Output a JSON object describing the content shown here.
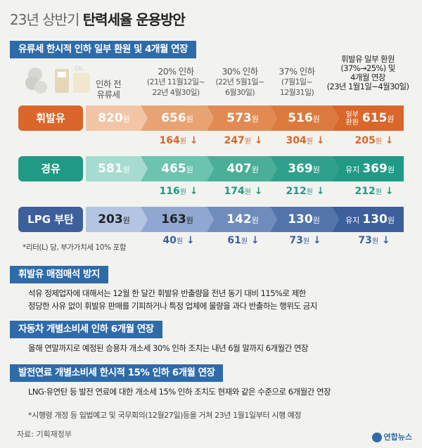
{
  "title": {
    "light": "23년 상반기",
    "bold": "탄력세율 운용방안"
  },
  "section1": {
    "heading": "유류세 한시적 인하 일부 환원 및 4개월 연장",
    "illustration_label": "OIL",
    "columns": [
      {
        "line1": "인하 전",
        "line2": "유류세"
      },
      {
        "line1": "20% 인하",
        "line2": "(21년 11월12일~",
        "line3": "22년 4월30일)"
      },
      {
        "line1": "30% 인하",
        "line2": "(22년 5월1일~",
        "line3": "6월30일)"
      },
      {
        "line1": "37% 인하",
        "line2": "(7월1일~",
        "line3": "12월31일)"
      },
      {
        "line1": "휘발유 일부 환원",
        "line2": "(37%→25%) 및",
        "line3": "4개월 연장",
        "line4": "(23년 1월1일~4월30일)"
      }
    ],
    "unit": "원",
    "rows": [
      {
        "label": "휘발유",
        "color": "#d9662a",
        "values": [
          "820",
          "656",
          "573",
          "516",
          "615"
        ],
        "last_prefix": "일부 환원",
        "last_prefix_a": "일부",
        "last_prefix_b": "환원",
        "diffs": [
          "164",
          "247",
          "304",
          "205"
        ],
        "diff_color": "#d9662a"
      },
      {
        "label": "경유",
        "color": "#1f9a85",
        "values": [
          "581",
          "465",
          "407",
          "369",
          "369"
        ],
        "last_prefix": "유지",
        "diffs": [
          "116",
          "174",
          "212",
          "212"
        ],
        "diff_color": "#1f9a85"
      },
      {
        "label": "LPG 부탄",
        "color": "#3d5f9c",
        "values": [
          "203",
          "163",
          "142",
          "130",
          "130"
        ],
        "last_prefix": "유지",
        "diffs": [
          "40",
          "61",
          "73",
          "73"
        ],
        "diff_color": "#3d5f9c"
      }
    ],
    "arrow": "↓",
    "footnote": "*리터(L) 당, 부가가치세 10% 포함"
  },
  "section2": {
    "heading": "휘발유 매점매석 방지",
    "line1": "석유 정제업자에 대해서는 12월 한 달간 휘발유 반출량을 전년 동기 대비 115%로 제한",
    "line2": "정당한 사유 없이 휘발유 판매를 기피하거나 특정 업체에 물량을 과다 반출하는 행위도 금지"
  },
  "section3": {
    "heading": "자동차 개별소비세 인하 6개월 연장",
    "line1": "올해 연말까지로 예정된 승용차 개소세 30% 인하 조치는 내년 6월 말까지 6개월간 연장"
  },
  "section4": {
    "heading": "발전연료 개별소비세 한시적 15% 인하 6개월 연장",
    "line1": "LNG·유연탄 등 발전 연료에 대한 개소세 15% 인하 조치도 현재와 같은 수준으로 6개월간 연장",
    "note": "*시행령 개정 등 입법예고 및 국무회의(12월27일)등을 거쳐 23년 1월1일부터 시행 예정"
  },
  "source": "자료: 기획재정부",
  "logo": "연합뉴스"
}
